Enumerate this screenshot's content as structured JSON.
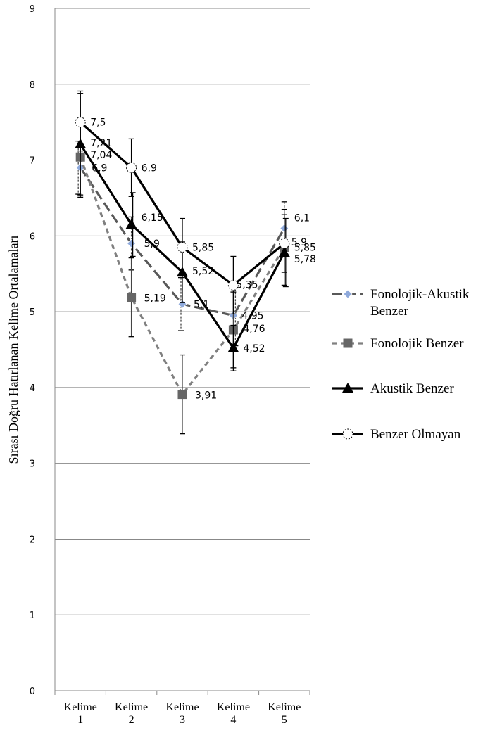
{
  "chart_data": {
    "type": "line",
    "title": "",
    "xlabel": "",
    "ylabel": "Sırası Doğru Hatırlanan Kelime Ortalamaları",
    "ylim": [
      0,
      9
    ],
    "y_ticks": [
      "0",
      "1",
      "2",
      "3",
      "4",
      "5",
      "6",
      "7",
      "8",
      "9"
    ],
    "categories": [
      [
        "Kelime",
        "1"
      ],
      [
        "Kelime",
        "2"
      ],
      [
        "Kelime",
        "3"
      ],
      [
        "Kelime",
        "4"
      ],
      [
        "Kelime",
        "5"
      ]
    ],
    "grid": true,
    "legend_position": "right",
    "series": [
      {
        "name": "Fonolojik-Akustik Benzer",
        "legend_lines": [
          "Fonolojik-Akustik",
          "Benzer"
        ],
        "values": [
          6.9,
          5.9,
          5.1,
          4.95,
          6.1
        ],
        "labels": [
          "6,9",
          "5,9",
          "5,1",
          "4,95",
          "6,1"
        ],
        "error": [
          0.35,
          0.35,
          0.35,
          0.4,
          0.35
        ],
        "color": "#595959",
        "marker_color": "#8EA9DB",
        "dash": "dash",
        "marker": "diamond"
      },
      {
        "name": "Fonolojik Benzer",
        "legend_lines": [
          "Fonolojik Benzer"
        ],
        "values": [
          7.04,
          5.19,
          3.91,
          4.76,
          5.85
        ],
        "labels": [
          "7,04",
          "5,19",
          "3,91",
          "4,76",
          "5,85"
        ],
        "error": [
          0.5,
          0.52,
          0.52,
          0.5,
          0.5
        ],
        "color": "#808080",
        "marker_color": "#666666",
        "dash": "short-dash",
        "marker": "square"
      },
      {
        "name": "Akustik Benzer",
        "legend_lines": [
          "Akustik Benzer"
        ],
        "values": [
          7.21,
          6.15,
          5.52,
          4.52,
          5.78
        ],
        "labels": [
          "7,21",
          "6,15",
          "5,52",
          "4,52",
          "5,78"
        ],
        "error": [
          0.7,
          0.42,
          0.4,
          0.3,
          0.45
        ],
        "color": "#000000",
        "marker_color": "#000000",
        "dash": "solid",
        "marker": "triangle"
      },
      {
        "name": "Benzer Olmayan",
        "legend_lines": [
          "Benzer Olmayan"
        ],
        "values": [
          7.5,
          6.9,
          5.85,
          5.35,
          5.9
        ],
        "labels": [
          "7,5",
          "6,9",
          "5,85",
          "5,35",
          "5,9"
        ],
        "error": [
          0.38,
          0.38,
          0.38,
          0.38,
          0.38
        ],
        "color": "#000000",
        "marker_color": "#ffffff",
        "dash": "solid",
        "marker": "circle-dashed"
      }
    ]
  }
}
